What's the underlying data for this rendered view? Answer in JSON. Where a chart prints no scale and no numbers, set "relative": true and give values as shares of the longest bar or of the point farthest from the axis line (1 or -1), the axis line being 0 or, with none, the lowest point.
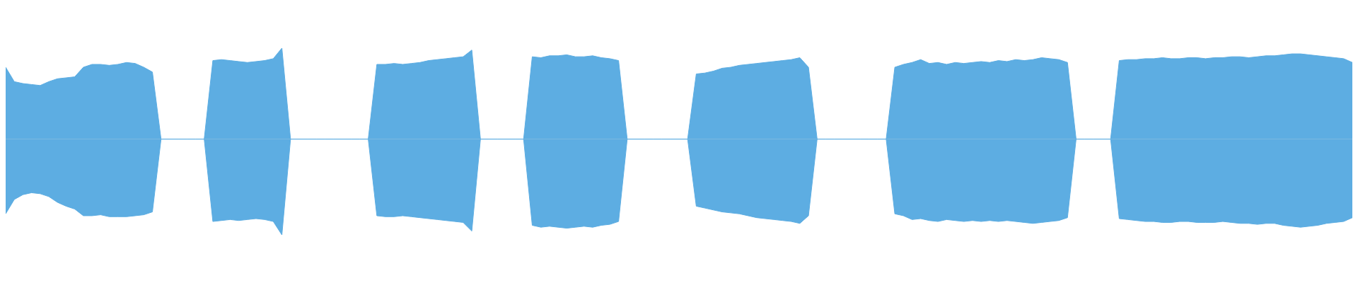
{
  "chart_data": {
    "type": "area",
    "relative": true,
    "legend": false,
    "grid": false,
    "categories": [
      null,
      null,
      null,
      null,
      null,
      null,
      null,
      null,
      null,
      null,
      null,
      null,
      null,
      null,
      null,
      null,
      null,
      null,
      null,
      null,
      null,
      null,
      null,
      null,
      null,
      null,
      null,
      null,
      null,
      null,
      null,
      null,
      null,
      null,
      null,
      null,
      null,
      null,
      null,
      null,
      null,
      null,
      null,
      null,
      null,
      null,
      null,
      null,
      null,
      null,
      null,
      null,
      null,
      null,
      null,
      null,
      null,
      null,
      null,
      null,
      null,
      null,
      null,
      null,
      null,
      null,
      null,
      null,
      null,
      null,
      null,
      null,
      null,
      null,
      null,
      null,
      null,
      null,
      null,
      null,
      null,
      null,
      null,
      null,
      null,
      null,
      null,
      null,
      null,
      null,
      null,
      null,
      null,
      null,
      null,
      null,
      null,
      null,
      null,
      null,
      null,
      null,
      null,
      null,
      null,
      null,
      null,
      null,
      null,
      null,
      null,
      null,
      null,
      null,
      null,
      null,
      null,
      null,
      null,
      null,
      null,
      null,
      null,
      null,
      null,
      null,
      null,
      null,
      null,
      null,
      null,
      null,
      null,
      null,
      null,
      null,
      null,
      null,
      null,
      null,
      null,
      null,
      null,
      null,
      null,
      null,
      null,
      null,
      null,
      null,
      null,
      null,
      null,
      null,
      null,
      null,
      null
    ],
    "series": [
      {
        "color": "#5dade2",
        "values": [
          0.75,
          0.6,
          0.58,
          0.57,
          0.56,
          0.6,
          0.63,
          0.64,
          0.65,
          0.75,
          0.78,
          0.78,
          0.77,
          0.78,
          0.8,
          0.79,
          0.75,
          0.7,
          0,
          0,
          0,
          0,
          0,
          0,
          0.82,
          0.83,
          0.82,
          0.81,
          0.8,
          0.81,
          0.82,
          0.84,
          0.95,
          0,
          0,
          0,
          0,
          0,
          0,
          0,
          0,
          0,
          0,
          0.78,
          0.78,
          0.79,
          0.78,
          0.79,
          0.8,
          0.82,
          0.83,
          0.84,
          0.85,
          0.86,
          0.93,
          0,
          0,
          0,
          0,
          0,
          0,
          0.86,
          0.85,
          0.87,
          0.87,
          0.88,
          0.86,
          0.86,
          0.87,
          0.85,
          0.84,
          0.82,
          0,
          0,
          0,
          0,
          0,
          0,
          0,
          0,
          0.68,
          0.69,
          0.71,
          0.74,
          0.75,
          0.77,
          0.78,
          0.79,
          0.8,
          0.81,
          0.82,
          0.83,
          0.85,
          0.75,
          0,
          0,
          0,
          0,
          0,
          0,
          0,
          0,
          0,
          0.75,
          0.78,
          0.8,
          0.83,
          0.79,
          0.8,
          0.78,
          0.8,
          0.79,
          0.8,
          0.81,
          0.8,
          0.82,
          0.81,
          0.83,
          0.82,
          0.83,
          0.85,
          0.84,
          0.83,
          0.8,
          0,
          0,
          0,
          0,
          0,
          0.82,
          0.83,
          0.83,
          0.84,
          0.84,
          0.85,
          0.84,
          0.84,
          0.85,
          0.85,
          0.84,
          0.85,
          0.85,
          0.86,
          0.86,
          0.85,
          0.86,
          0.87,
          0.87,
          0.88,
          0.89,
          0.89,
          0.88,
          0.87,
          0.86,
          0.85,
          0.84,
          0.8
        ]
      },
      {
        "color": "#5dade2",
        "values": [
          -0.78,
          -0.63,
          -0.58,
          -0.56,
          -0.57,
          -0.6,
          -0.66,
          -0.7,
          -0.73,
          -0.8,
          -0.8,
          -0.79,
          -0.81,
          -0.81,
          -0.81,
          -0.8,
          -0.79,
          -0.76,
          0,
          0,
          0,
          0,
          0,
          0,
          -0.86,
          -0.85,
          -0.84,
          -0.85,
          -0.84,
          -0.83,
          -0.84,
          -0.86,
          -1,
          0,
          0,
          0,
          0,
          0,
          0,
          0,
          0,
          0,
          0,
          -0.8,
          -0.81,
          -0.81,
          -0.8,
          -0.81,
          -0.82,
          -0.83,
          -0.84,
          -0.85,
          -0.86,
          -0.87,
          -0.96,
          0,
          0,
          0,
          0,
          0,
          0,
          -0.9,
          -0.92,
          -0.91,
          -0.92,
          -0.93,
          -0.92,
          -0.91,
          -0.92,
          -0.9,
          -0.89,
          -0.86,
          0,
          0,
          0,
          0,
          0,
          0,
          0,
          0,
          -0.7,
          -0.72,
          -0.74,
          -0.76,
          -0.77,
          -0.78,
          -0.8,
          -0.82,
          -0.83,
          -0.84,
          -0.85,
          -0.86,
          -0.88,
          -0.8,
          0,
          0,
          0,
          0,
          0,
          0,
          0,
          0,
          0,
          -0.78,
          -0.8,
          -0.84,
          -0.83,
          -0.85,
          -0.86,
          -0.84,
          -0.85,
          -0.86,
          -0.85,
          -0.86,
          -0.85,
          -0.86,
          -0.85,
          -0.86,
          -0.87,
          -0.88,
          -0.87,
          -0.86,
          -0.85,
          -0.82,
          0,
          0,
          0,
          0,
          0,
          -0.83,
          -0.84,
          -0.85,
          -0.86,
          -0.86,
          -0.87,
          -0.87,
          -0.86,
          -0.86,
          -0.87,
          -0.87,
          -0.87,
          -0.86,
          -0.87,
          -0.88,
          -0.88,
          -0.89,
          -0.88,
          -0.88,
          -0.9,
          -0.91,
          -0.92,
          -0.91,
          -0.9,
          -0.88,
          -0.87,
          -0.86,
          -0.82
        ]
      }
    ]
  }
}
